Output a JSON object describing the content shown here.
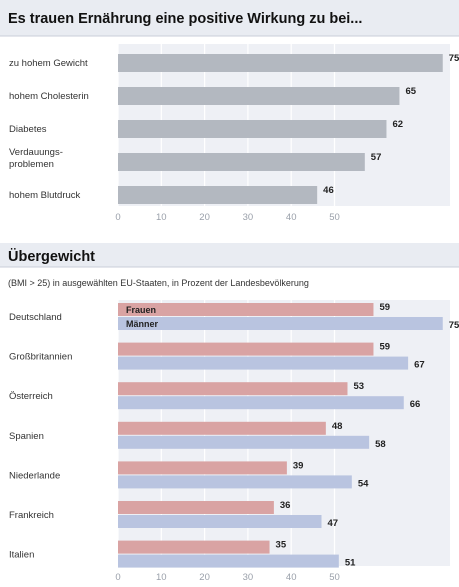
{
  "chart_data": [
    {
      "type": "bar",
      "orientation": "horizontal",
      "title": "Es trauen Ernährung eine positive Wirkung zu bei...",
      "categories": [
        "zu hohem Gewicht",
        "hohem Cholesterin",
        "Diabetes",
        "Verdauungs-\nproblemen",
        "hohem Blutdruck"
      ],
      "values": [
        75,
        65,
        62,
        57,
        46
      ],
      "xticks": [
        "0",
        "10",
        "20",
        "30",
        "40",
        "50"
      ],
      "xlim": [
        0,
        75
      ],
      "grid": true,
      "colors": {
        "bar": "#b3b8c0",
        "panel": "#eef0f5",
        "grid": "#ffffff"
      }
    },
    {
      "type": "bar",
      "orientation": "horizontal",
      "title": "Übergewicht",
      "subtitle": "(BMI > 25) in ausgewählten EU-Staaten, in Prozent der Landesbevölkerung",
      "categories": [
        "Deutschland",
        "Großbritannien",
        "Österreich",
        "Spanien",
        "Niederlande",
        "Frankreich",
        "Italien"
      ],
      "series": [
        {
          "name": "Frauen",
          "values": [
            59,
            59,
            53,
            48,
            39,
            36,
            35
          ]
        },
        {
          "name": "Männer",
          "values": [
            75,
            67,
            66,
            58,
            54,
            47,
            51
          ]
        }
      ],
      "xticks": [
        "0",
        "10",
        "20",
        "30",
        "40",
        "50"
      ],
      "xlim": [
        0,
        75
      ],
      "grid": true,
      "legend": "inside-top-left",
      "colors": {
        "Frauen": "#d9a3a3",
        "Männer": "#b9c4e0",
        "panel": "#eef0f5",
        "grid": "#ffffff"
      }
    }
  ]
}
